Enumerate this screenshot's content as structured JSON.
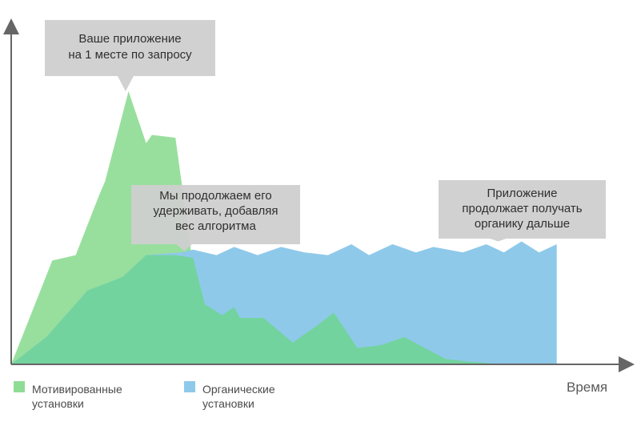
{
  "chart_data": {
    "type": "area",
    "xlabel": "Время",
    "ylabel": "",
    "xlim": [
      0,
      100
    ],
    "ylim": [
      0,
      100
    ],
    "grid": false,
    "legend_position": "bottom-left",
    "series": [
      {
        "name": "Мотивированные установки",
        "color": "#8fdc96",
        "x": [
          0,
          7,
          11,
          15,
          16,
          20,
          23,
          24,
          28,
          31,
          31,
          33,
          35,
          36,
          39,
          41,
          44,
          46,
          51,
          58,
          62,
          68,
          75,
          84
        ],
        "y": [
          0,
          38,
          40,
          62,
          67,
          100,
          81,
          84,
          83,
          36,
          39,
          34,
          21,
          20,
          16,
          10,
          21,
          10,
          8,
          14,
          14,
          8,
          2,
          0
        ]
      },
      {
        "name": "Органические установки",
        "color": "#8ec9ea",
        "x": [
          0,
          6,
          13,
          19,
          23,
          29,
          31,
          35,
          38,
          42,
          46,
          50,
          54,
          58,
          61,
          65,
          69,
          72,
          77,
          81,
          84,
          87,
          90,
          93
        ],
        "y": [
          0,
          10,
          27,
          32,
          40,
          41,
          42,
          40,
          43,
          40,
          43,
          41,
          40,
          44,
          40,
          44,
          41,
          43,
          41,
          44,
          41,
          45,
          41,
          44
        ]
      },
      {
        "name": "",
        "color": "#73d39e",
        "x": [
          0,
          6,
          13,
          19,
          23,
          28,
          31,
          33,
          36,
          38,
          39,
          43,
          48,
          52,
          55,
          59,
          63,
          67,
          74,
          78,
          84
        ],
        "y": [
          0,
          10,
          27,
          32,
          40,
          40,
          39,
          22,
          18,
          21,
          17,
          17,
          8,
          14,
          19,
          6,
          7,
          10,
          2,
          1,
          0
        ]
      }
    ],
    "annotations": [
      {
        "text": [
          "Ваше приложение",
          "на 1 месте по запросу"
        ],
        "x": 19.5,
        "y": 100
      },
      {
        "text": [
          "Мы продолжаем его",
          "удерживать, добавляя",
          "вес алгоритма"
        ],
        "x": 29.5,
        "y": 41.5
      },
      {
        "text": [
          "Приложение",
          "продолжает получать",
          "органику дальше"
        ],
        "x": 83,
        "y": 45
      }
    ]
  }
}
